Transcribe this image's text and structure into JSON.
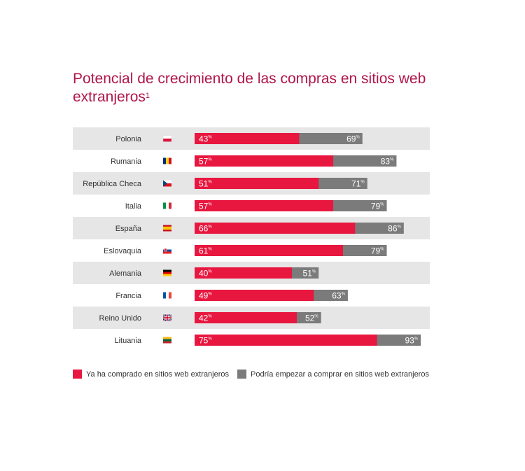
{
  "title": "Potencial de crecimiento de las compras en sitios web extranjeros",
  "title_footnote": "1",
  "colors": {
    "ya_comprado": "#e8173f",
    "podria_empezar": "#7b7b7b",
    "row_even": "#e6e6e6",
    "row_odd": "#ffffff"
  },
  "legend": [
    {
      "label": "Ya ha comprado en sitios web extranjeros",
      "color": "#e8173f"
    },
    {
      "label": "Podría empezar a comprar en sitios web extranjeros",
      "color": "#7b7b7b"
    }
  ],
  "chart_data": {
    "type": "bar",
    "orientation": "horizontal",
    "value_suffix": "%",
    "categories": [
      "Polonia",
      "Rumania",
      "República Checa",
      "Italia",
      "España",
      "Eslovaquia",
      "Alemania",
      "Francia",
      "Reino Unido",
      "Lituania"
    ],
    "flags": [
      "flag-poland-icon",
      "flag-romania-icon",
      "flag-czech-icon",
      "flag-italy-icon",
      "flag-spain-icon",
      "flag-slovakia-icon",
      "flag-germany-icon",
      "flag-france-icon",
      "flag-uk-icon",
      "flag-lithuania-icon"
    ],
    "series": [
      {
        "name": "Ya ha comprado en sitios web extranjeros",
        "values": [
          43,
          57,
          51,
          57,
          66,
          61,
          40,
          49,
          42,
          75
        ]
      },
      {
        "name": "Podría empezar a comprar en sitios web extranjeros",
        "values": [
          69,
          83,
          71,
          79,
          86,
          79,
          51,
          63,
          52,
          93
        ]
      }
    ],
    "xlim": [
      0,
      100
    ],
    "grid": false,
    "legend_position": "bottom-left"
  }
}
